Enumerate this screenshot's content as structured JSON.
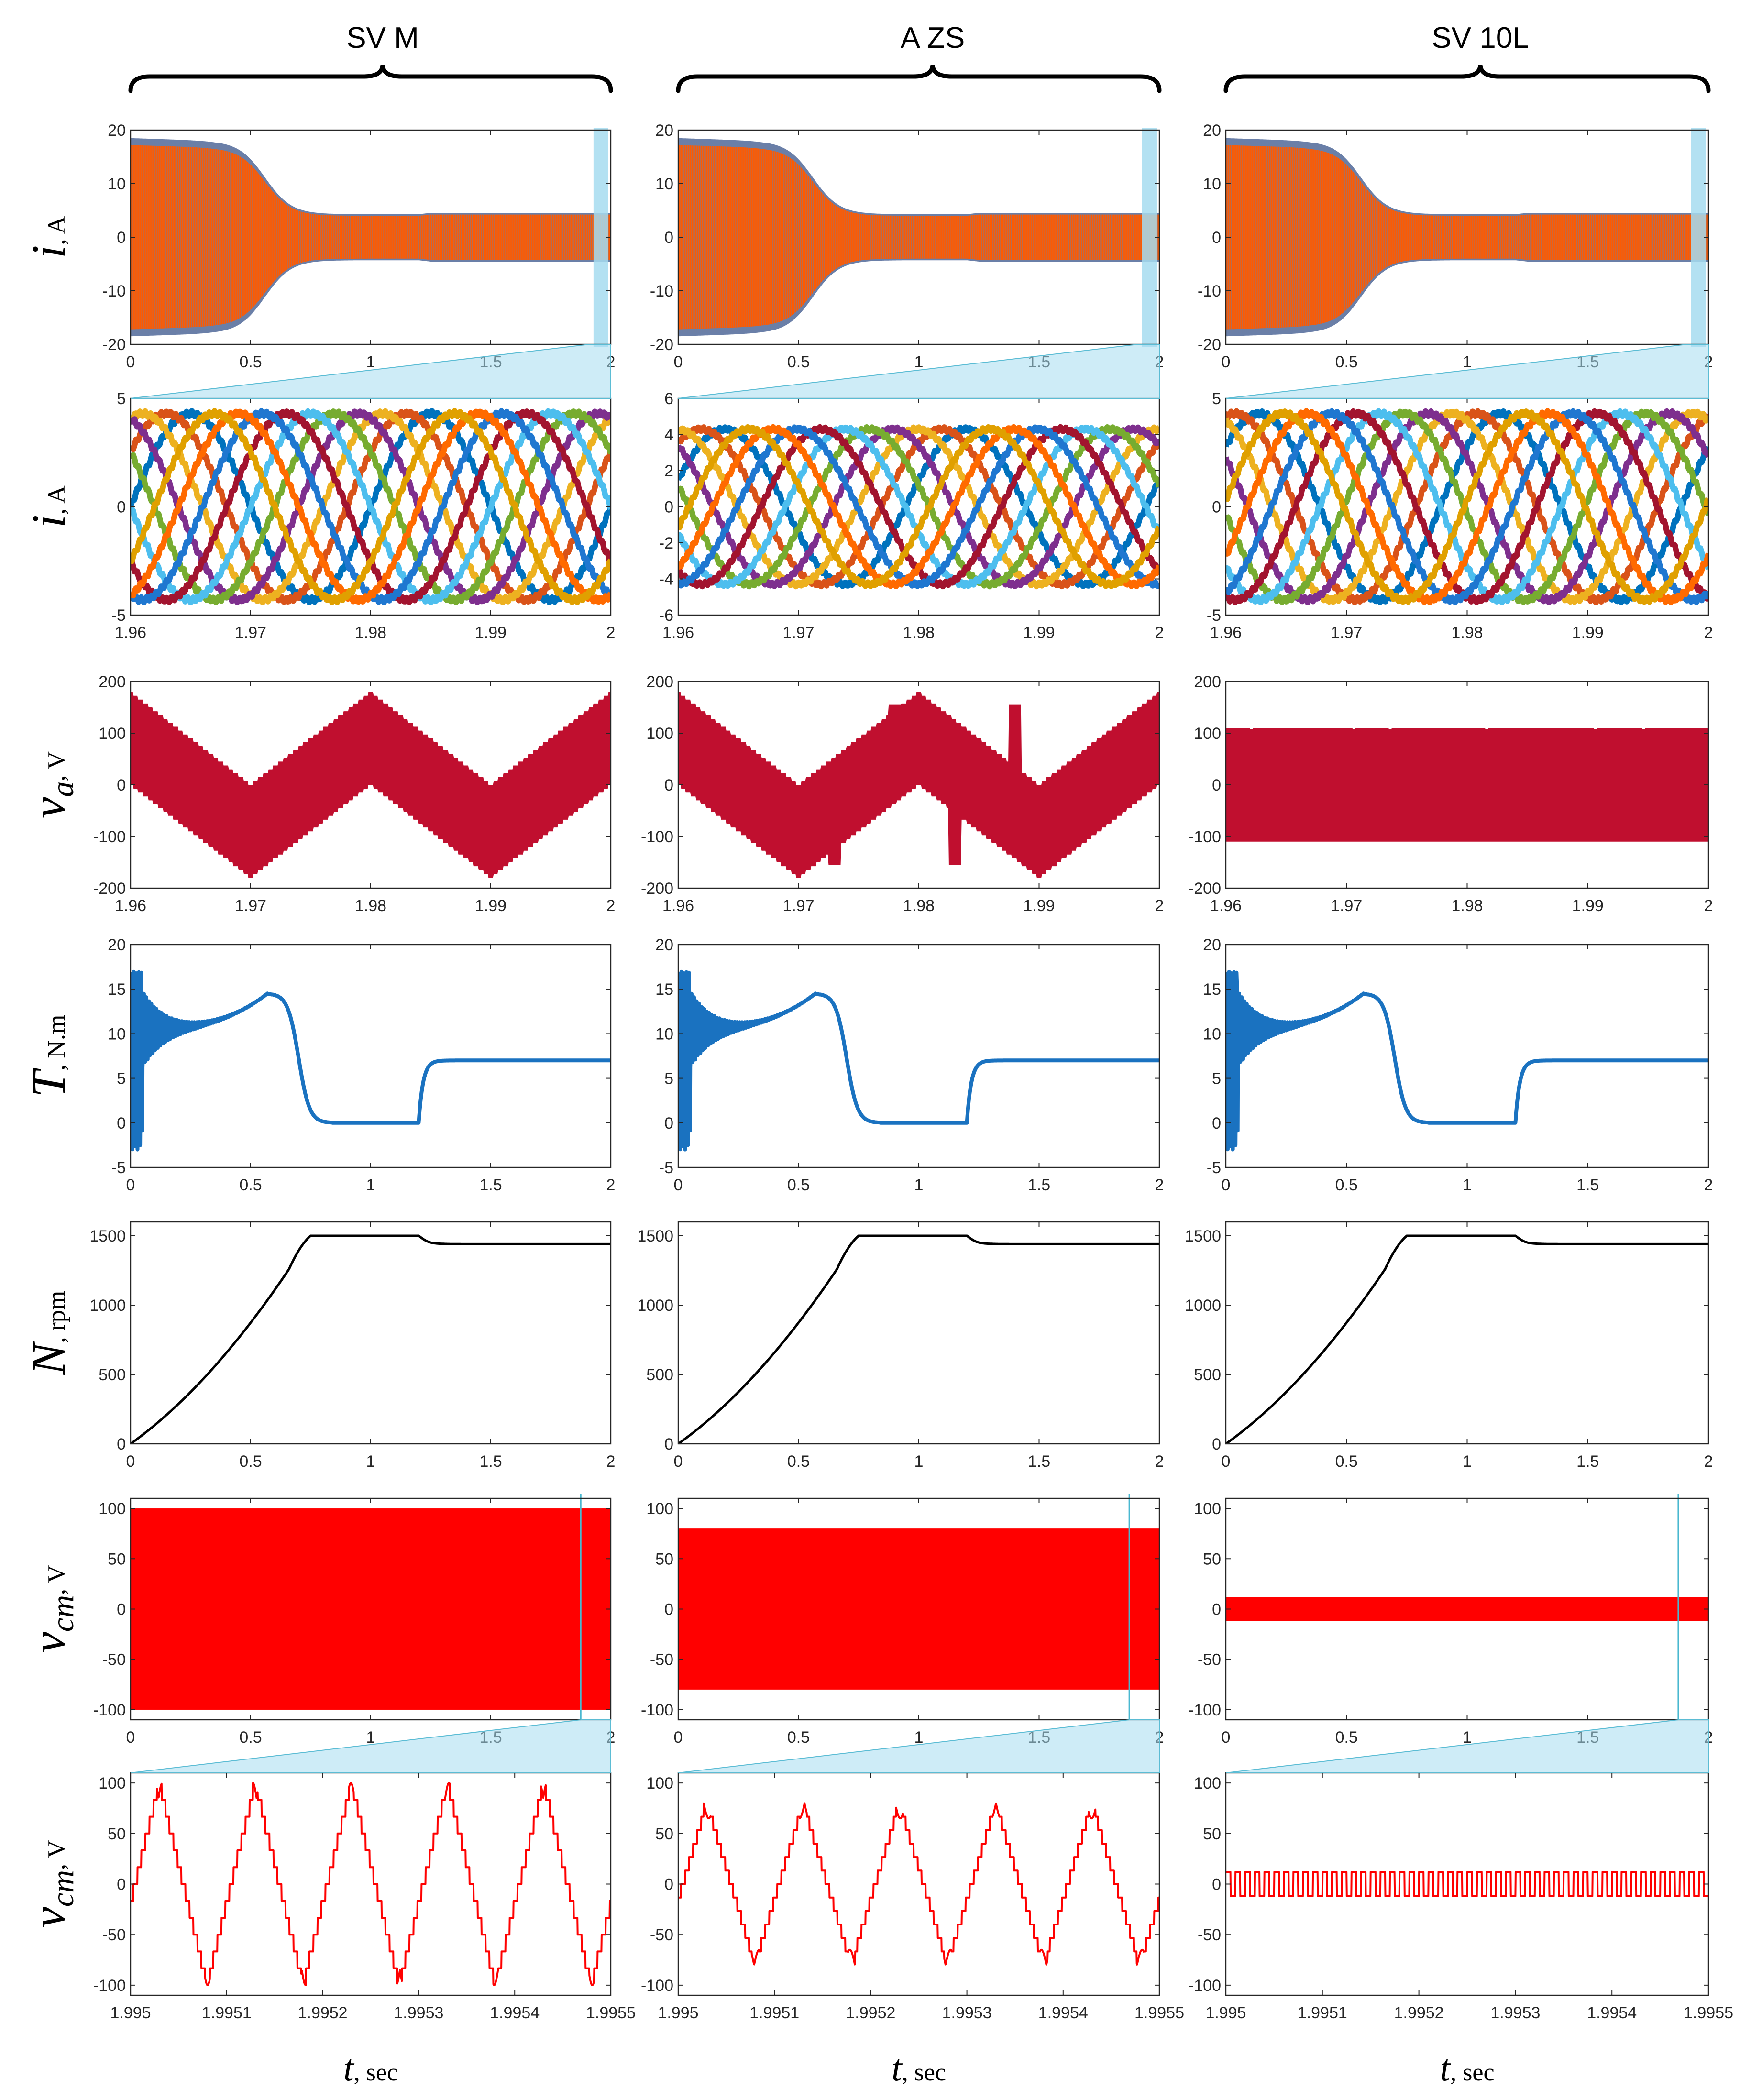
{
  "chart_data": {
    "type": "line",
    "columns": [
      {
        "title": "SV M",
        "key": "svm"
      },
      {
        "title": "A ZS",
        "key": "azs"
      },
      {
        "title": "SV 10L",
        "key": "sv10l"
      }
    ],
    "rows": [
      {
        "id": "ia_full",
        "ylabel_sym": "i",
        "ylabel_sub": "",
        "ylabel_unit": ", A",
        "xlim": [
          0,
          2
        ],
        "xticks": [
          "0",
          "0.5",
          "1",
          "1.5",
          "2"
        ],
        "ylims": [
          [
            -20,
            20
          ],
          [
            -20,
            20
          ],
          [
            -20,
            20
          ]
        ],
        "yticks": [
          [
            "-20",
            "-10",
            "0",
            "10",
            "20"
          ],
          [
            "-20",
            "-10",
            "0",
            "10",
            "20"
          ],
          [
            "-20",
            "-10",
            "0",
            "10",
            "20"
          ]
        ],
        "desc": "phase currents, amplitude ~18 A at start, ~4 A steady state"
      },
      {
        "id": "ia_zoom",
        "ylabel_sym": "i",
        "ylabel_sub": "",
        "ylabel_unit": ", A",
        "xlim": [
          1.96,
          2
        ],
        "xticks": [
          "1.96",
          "1.97",
          "1.98",
          "1.99",
          "2"
        ],
        "ylims": [
          [
            -5,
            5
          ],
          [
            -6,
            6
          ],
          [
            -5,
            5
          ]
        ],
        "yticks": [
          [
            "-5",
            "0",
            "5"
          ],
          [
            "-6",
            "-4",
            "-2",
            "0",
            "2",
            "4",
            "6"
          ],
          [
            "-5",
            "0",
            "5"
          ]
        ],
        "amplitude": 4.3,
        "phases": 10
      },
      {
        "id": "va",
        "ylabel_sym": "v",
        "ylabel_sub": "a",
        "ylabel_unit": ", V",
        "xlim": [
          1.96,
          2
        ],
        "xticks": [
          "1.96",
          "1.97",
          "1.98",
          "1.99",
          "2"
        ],
        "ylims": [
          [
            -200,
            200
          ],
          [
            -200,
            200
          ],
          [
            -200,
            200
          ]
        ],
        "yticks": [
          [
            "-200",
            "-100",
            "0",
            "100",
            "200"
          ],
          [
            "-200",
            "-100",
            "0",
            "100",
            "200"
          ],
          [
            "-200",
            "-100",
            "0",
            "100",
            "200"
          ]
        ],
        "peaks": [
          180,
          180,
          110
        ]
      },
      {
        "id": "torque",
        "ylabel_sym": "T",
        "ylabel_sub": "",
        "ylabel_unit": ", N.m",
        "xlim": [
          0,
          2
        ],
        "xticks": [
          "0",
          "0.5",
          "1",
          "1.5",
          "2"
        ],
        "ylims": [
          [
            -5,
            20
          ],
          [
            -5,
            20
          ],
          [
            -5,
            20
          ]
        ],
        "yticks": [
          [
            "-5",
            "0",
            "5",
            "10",
            "15",
            "20"
          ],
          [
            "-5",
            "0",
            "5",
            "10",
            "15",
            "20"
          ],
          [
            "-5",
            "0",
            "5",
            "10",
            "15",
            "20"
          ]
        ],
        "peak": 14.5,
        "steady": 7
      },
      {
        "id": "speed",
        "ylabel_sym": "N",
        "ylabel_sub": "",
        "ylabel_unit": ", rpm",
        "xlim": [
          0,
          2
        ],
        "xticks": [
          "0",
          "0.5",
          "1",
          "1.5",
          "2"
        ],
        "ylims": [
          [
            0,
            1600
          ],
          [
            0,
            1600
          ],
          [
            0,
            1600
          ]
        ],
        "yticks": [
          [
            "0",
            "500",
            "1000",
            "1500"
          ],
          [
            "0",
            "500",
            "1000",
            "1500"
          ],
          [
            "0",
            "500",
            "1000",
            "1500"
          ]
        ],
        "sync": 1500,
        "loaded": 1440
      },
      {
        "id": "vcm_full",
        "ylabel_sym": "v",
        "ylabel_sub": "cm",
        "ylabel_unit": ", V",
        "xlim": [
          0,
          2
        ],
        "xticks": [
          "0",
          "0.5",
          "1",
          "1.5",
          "2"
        ],
        "ylims": [
          [
            -110,
            110
          ],
          [
            -110,
            110
          ],
          [
            -110,
            110
          ]
        ],
        "yticks": [
          [
            "-100",
            "-50",
            "0",
            "50",
            "100"
          ],
          [
            "-100",
            "-50",
            "0",
            "50",
            "100"
          ],
          [
            "-100",
            "-50",
            "0",
            "50",
            "100"
          ]
        ],
        "band": [
          100,
          80,
          12
        ]
      },
      {
        "id": "vcm_zoom",
        "ylabel_sym": "v",
        "ylabel_sub": "cm",
        "ylabel_unit": ", V",
        "xlim": [
          1.995,
          1.9955
        ],
        "xticks": [
          "1.995",
          "1.9951",
          "1.9952",
          "1.9953",
          "1.9954",
          "1.9955"
        ],
        "ylims": [
          [
            -110,
            110
          ],
          [
            -110,
            110
          ],
          [
            -110,
            110
          ]
        ],
        "yticks": [
          [
            "-100",
            "-50",
            "0",
            "50",
            "100"
          ],
          [
            "-100",
            "-50",
            "0",
            "50",
            "100"
          ],
          [
            "-100",
            "-50",
            "0",
            "50",
            "100"
          ]
        ],
        "peaks": [
          100,
          80,
          12
        ]
      }
    ],
    "xlabel_sym": "t",
    "xlabel_unit": ", sec",
    "colors": {
      "current": [
        "#0072bd",
        "#d95319",
        "#edb120",
        "#7e2f8e",
        "#77ac30",
        "#4dbeee",
        "#a2142f",
        "#1f77d0",
        "#ff6a00",
        "#e0a000"
      ],
      "current_full": "#ff5a00",
      "voltage": "#c00f2f",
      "torque": "#1a72c0",
      "speed": "#000000",
      "vcm": "#ff0000",
      "zoom": "#a6dcf0"
    }
  }
}
